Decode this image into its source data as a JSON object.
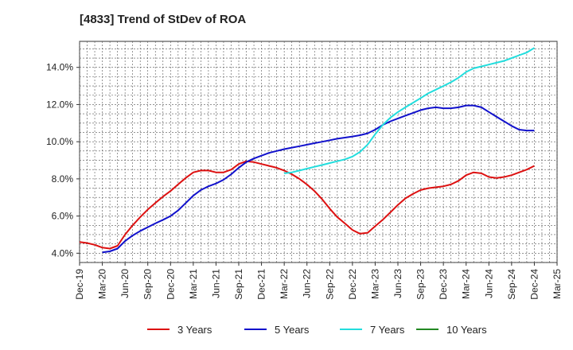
{
  "chart_data": {
    "type": "line",
    "title": "[4833]  Trend of StDev of ROA",
    "xlabel": "",
    "ylabel": "",
    "x_ticks": [
      "Dec-19",
      "Mar-20",
      "Jun-20",
      "Sep-20",
      "Dec-20",
      "Mar-21",
      "Jun-21",
      "Sep-21",
      "Dec-21",
      "Mar-22",
      "Jun-22",
      "Sep-22",
      "Dec-22",
      "Mar-23",
      "Jun-23",
      "Sep-23",
      "Dec-23",
      "Mar-24",
      "Jun-24",
      "Sep-24",
      "Dec-24",
      "Mar-25"
    ],
    "y_ticks": [
      "4.0%",
      "6.0%",
      "8.0%",
      "10.0%",
      "12.0%",
      "14.0%"
    ],
    "y_tick_values": [
      4,
      6,
      8,
      10,
      12,
      14
    ],
    "ylim": [
      3.5,
      15.4
    ],
    "xlim": [
      0,
      21
    ],
    "grid": true,
    "legend_position": "bottom",
    "series": [
      {
        "name": "3 Years",
        "color": "#dd1111",
        "x": [
          0,
          0.33,
          0.67,
          1,
          1.33,
          1.67,
          2,
          2.33,
          2.67,
          3,
          3.33,
          3.67,
          4,
          4.33,
          4.67,
          5,
          5.33,
          5.67,
          6,
          6.33,
          6.67,
          7,
          7.33,
          7.67,
          8,
          8.33,
          8.67,
          9,
          9.33,
          9.67,
          10,
          10.33,
          10.67,
          11,
          11.33,
          11.67,
          12,
          12.33,
          12.67,
          13,
          13.33,
          13.67,
          14,
          14.33,
          14.67,
          15,
          15.33,
          15.67,
          16,
          16.33,
          16.67,
          17,
          17.33,
          17.67,
          18,
          18.33,
          18.67,
          19,
          19.33,
          19.67,
          20
        ],
        "values": [
          4.6,
          4.55,
          4.45,
          4.3,
          4.25,
          4.4,
          5.0,
          5.5,
          5.95,
          6.35,
          6.7,
          7.05,
          7.35,
          7.7,
          8.05,
          8.35,
          8.45,
          8.45,
          8.35,
          8.35,
          8.5,
          8.8,
          8.95,
          8.9,
          8.8,
          8.7,
          8.6,
          8.45,
          8.25,
          8.0,
          7.7,
          7.35,
          6.9,
          6.4,
          5.95,
          5.6,
          5.25,
          5.05,
          5.1,
          5.45,
          5.8,
          6.2,
          6.6,
          6.95,
          7.2,
          7.4,
          7.5,
          7.55,
          7.6,
          7.7,
          7.9,
          8.2,
          8.35,
          8.3,
          8.1,
          8.05,
          8.1,
          8.2,
          8.35,
          8.5,
          8.7
        ]
      },
      {
        "name": "5 Years",
        "color": "#1111cc",
        "x": [
          1,
          1.33,
          1.67,
          2,
          2.33,
          2.67,
          3,
          3.33,
          3.67,
          4,
          4.33,
          4.67,
          5,
          5.33,
          5.67,
          6,
          6.33,
          6.67,
          7,
          7.33,
          7.67,
          8,
          8.33,
          8.67,
          9,
          9.33,
          9.67,
          10,
          10.33,
          10.67,
          11,
          11.33,
          11.67,
          12,
          12.33,
          12.67,
          13,
          13.33,
          13.67,
          14,
          14.33,
          14.67,
          15,
          15.33,
          15.67,
          16,
          16.33,
          16.67,
          17,
          17.33,
          17.67,
          18,
          18.33,
          18.67,
          19,
          19.33,
          19.67,
          20
        ],
        "values": [
          4.05,
          4.1,
          4.25,
          4.65,
          4.95,
          5.2,
          5.4,
          5.6,
          5.8,
          6.0,
          6.3,
          6.7,
          7.1,
          7.4,
          7.6,
          7.75,
          7.95,
          8.25,
          8.6,
          8.9,
          9.1,
          9.25,
          9.4,
          9.5,
          9.6,
          9.68,
          9.76,
          9.84,
          9.92,
          10.0,
          10.08,
          10.16,
          10.22,
          10.28,
          10.35,
          10.45,
          10.65,
          10.9,
          11.1,
          11.25,
          11.4,
          11.55,
          11.7,
          11.8,
          11.85,
          11.8,
          11.8,
          11.85,
          11.95,
          11.95,
          11.85,
          11.6,
          11.35,
          11.1,
          10.85,
          10.65,
          10.6,
          10.6
        ]
      },
      {
        "name": "7 Years",
        "color": "#22dddd",
        "x": [
          9,
          9.33,
          9.67,
          10,
          10.33,
          10.67,
          11,
          11.33,
          11.67,
          12,
          12.33,
          12.67,
          13,
          13.33,
          13.67,
          14,
          14.33,
          14.67,
          15,
          15.33,
          15.67,
          16,
          16.33,
          16.67,
          17,
          17.33,
          17.67,
          18,
          18.33,
          18.67,
          19,
          19.33,
          19.67,
          20
        ],
        "values": [
          8.3,
          8.35,
          8.45,
          8.55,
          8.65,
          8.75,
          8.85,
          8.95,
          9.05,
          9.2,
          9.45,
          9.85,
          10.4,
          10.9,
          11.3,
          11.6,
          11.85,
          12.1,
          12.35,
          12.6,
          12.8,
          13.0,
          13.2,
          13.45,
          13.75,
          13.95,
          14.05,
          14.15,
          14.25,
          14.35,
          14.5,
          14.65,
          14.8,
          15.05
        ]
      },
      {
        "name": "10 Years",
        "color": "#228822",
        "x": [],
        "values": []
      }
    ]
  }
}
